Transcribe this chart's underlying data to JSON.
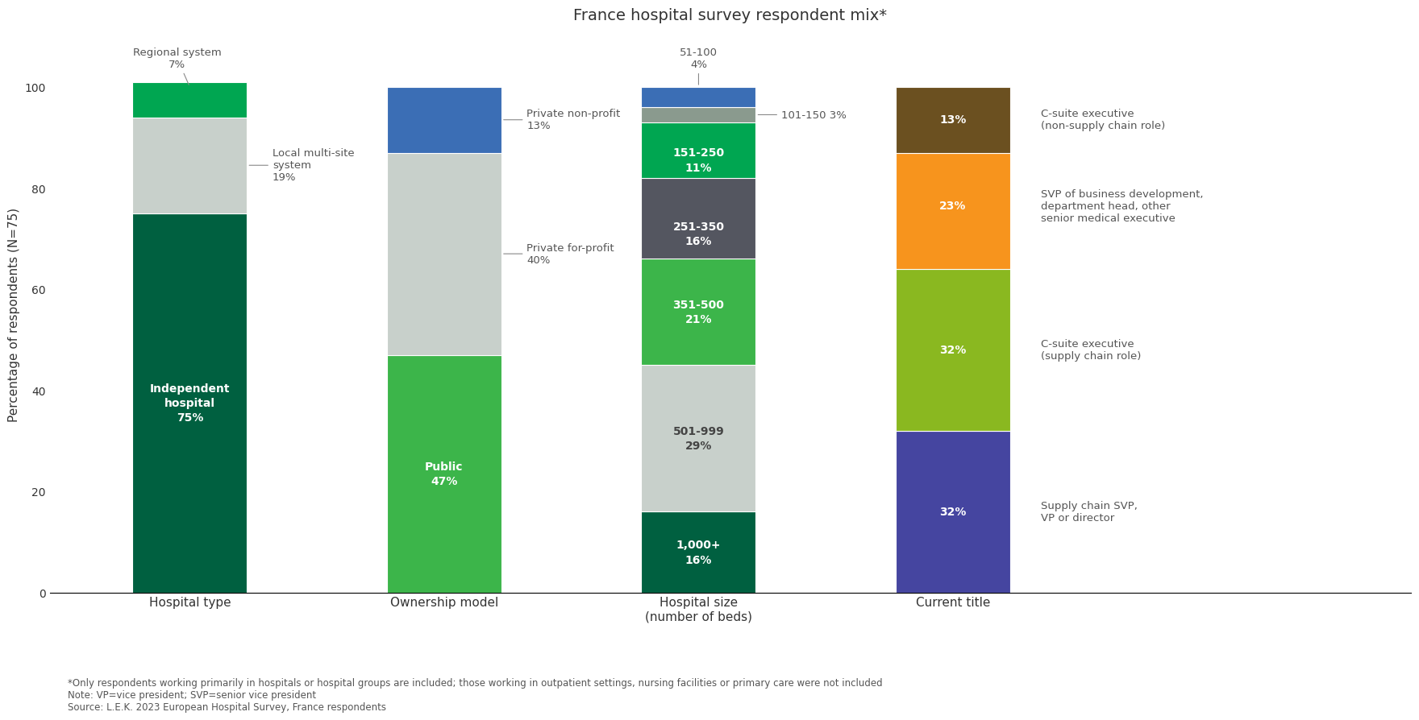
{
  "title": "France hospital survey respondent mix*",
  "ylabel": "Percentage of respondents (N=75)",
  "categories": [
    "Hospital type",
    "Ownership model",
    "Hospital size\n(number of beds)",
    "Current title"
  ],
  "bars": {
    "Hospital type": [
      {
        "value": 75,
        "color": "#006040"
      },
      {
        "value": 19,
        "color": "#c8d0cb"
      },
      {
        "value": 7,
        "color": "#00a651"
      }
    ],
    "Ownership model": [
      {
        "value": 47,
        "color": "#3cb54a"
      },
      {
        "value": 40,
        "color": "#c8d0cb"
      },
      {
        "value": 13,
        "color": "#3b6eb5"
      }
    ],
    "Hospital size\n(number of beds)": [
      {
        "value": 16,
        "color": "#006040"
      },
      {
        "value": 29,
        "color": "#c8d0cb"
      },
      {
        "value": 21,
        "color": "#3cb54a"
      },
      {
        "value": 16,
        "color": "#545660"
      },
      {
        "value": 11,
        "color": "#00a651"
      },
      {
        "value": 3,
        "color": "#8a9a8e"
      },
      {
        "value": 4,
        "color": "#3b6eb5"
      }
    ],
    "Current title": [
      {
        "value": 32,
        "color": "#4545a0"
      },
      {
        "value": 32,
        "color": "#8ab820"
      },
      {
        "value": 23,
        "color": "#f7941d"
      },
      {
        "value": 13,
        "color": "#6b5020"
      }
    ]
  },
  "footnotes": [
    "*Only respondents working primarily in hospitals or hospital groups are included; those working in outpatient settings, nursing facilities or primary care were not included",
    "Note: VP=vice president; SVP=senior vice president",
    "Source: L.E.K. 2023 European Hospital Survey, France respondents"
  ],
  "bar_width": 0.45,
  "bar_positions": [
    0,
    1,
    2,
    3
  ],
  "xlim": [
    -0.55,
    4.8
  ],
  "ylim": [
    0,
    110
  ],
  "bg_color": "#ffffff",
  "text_color": "#333333"
}
